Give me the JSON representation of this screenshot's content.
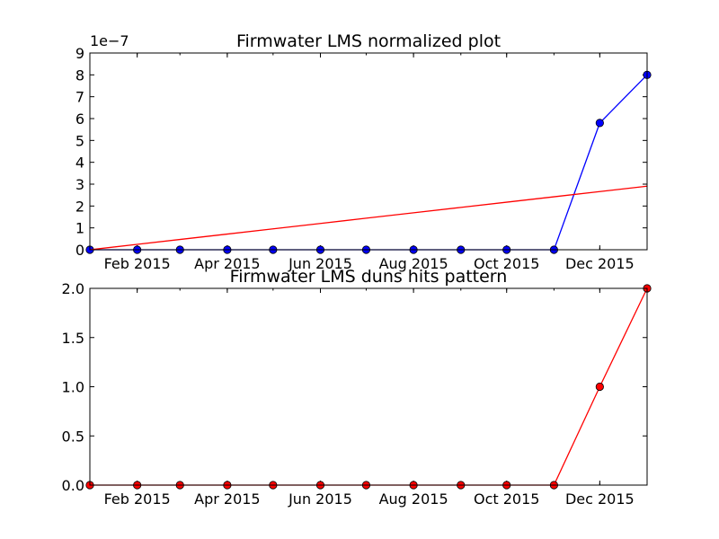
{
  "chart_data": [
    {
      "type": "line",
      "title": "Firmwater LMS normalized plot",
      "offset_label": "1e−7",
      "x": [
        "2015-01-01",
        "2015-02-01",
        "2015-03-01",
        "2015-04-01",
        "2015-05-01",
        "2015-06-01",
        "2015-07-01",
        "2015-08-01",
        "2015-09-01",
        "2015-10-01",
        "2015-11-01",
        "2015-12-01",
        "2016-01-01"
      ],
      "xlim": [
        "2015-01-01",
        "2016-01-01"
      ],
      "xtick_labels": [
        "Feb 2015",
        "Apr 2015",
        "Jun 2015",
        "Aug 2015",
        "Oct 2015",
        "Dec 2015"
      ],
      "ylim": [
        0,
        9
      ],
      "ytick_labels": [
        "0",
        "1",
        "2",
        "3",
        "4",
        "5",
        "6",
        "7",
        "8",
        "9"
      ],
      "series": [
        {
          "values": [
            0,
            0,
            0,
            0,
            0,
            0,
            0,
            0,
            0,
            0,
            0,
            5.8,
            8.0
          ],
          "color": "#0000ff",
          "marker": "circle"
        },
        {
          "values": [
            0,
            0.247,
            0.47,
            0.717,
            0.956,
            1.203,
            1.442,
            1.689,
            1.936,
            2.175,
            2.422,
            2.661,
            2.908
          ],
          "color": "#ff0000",
          "marker": "none"
        }
      ]
    },
    {
      "type": "line",
      "title": "Firmwater LMS duns hits pattern",
      "x": [
        "2015-01-01",
        "2015-02-01",
        "2015-03-01",
        "2015-04-01",
        "2015-05-01",
        "2015-06-01",
        "2015-07-01",
        "2015-08-01",
        "2015-09-01",
        "2015-10-01",
        "2015-11-01",
        "2015-12-01",
        "2016-01-01"
      ],
      "xlim": [
        "2015-01-01",
        "2016-01-01"
      ],
      "xtick_labels": [
        "Feb 2015",
        "Apr 2015",
        "Jun 2015",
        "Aug 2015",
        "Oct 2015",
        "Dec 2015"
      ],
      "ylim": [
        0,
        2
      ],
      "ytick_labels": [
        "0.0",
        "0.5",
        "1.0",
        "1.5",
        "2.0"
      ],
      "series": [
        {
          "values": [
            0,
            0,
            0,
            0,
            0,
            0,
            0,
            0,
            0,
            0,
            0,
            1,
            2
          ],
          "color": "#ff0000",
          "marker": "circle"
        }
      ]
    }
  ]
}
